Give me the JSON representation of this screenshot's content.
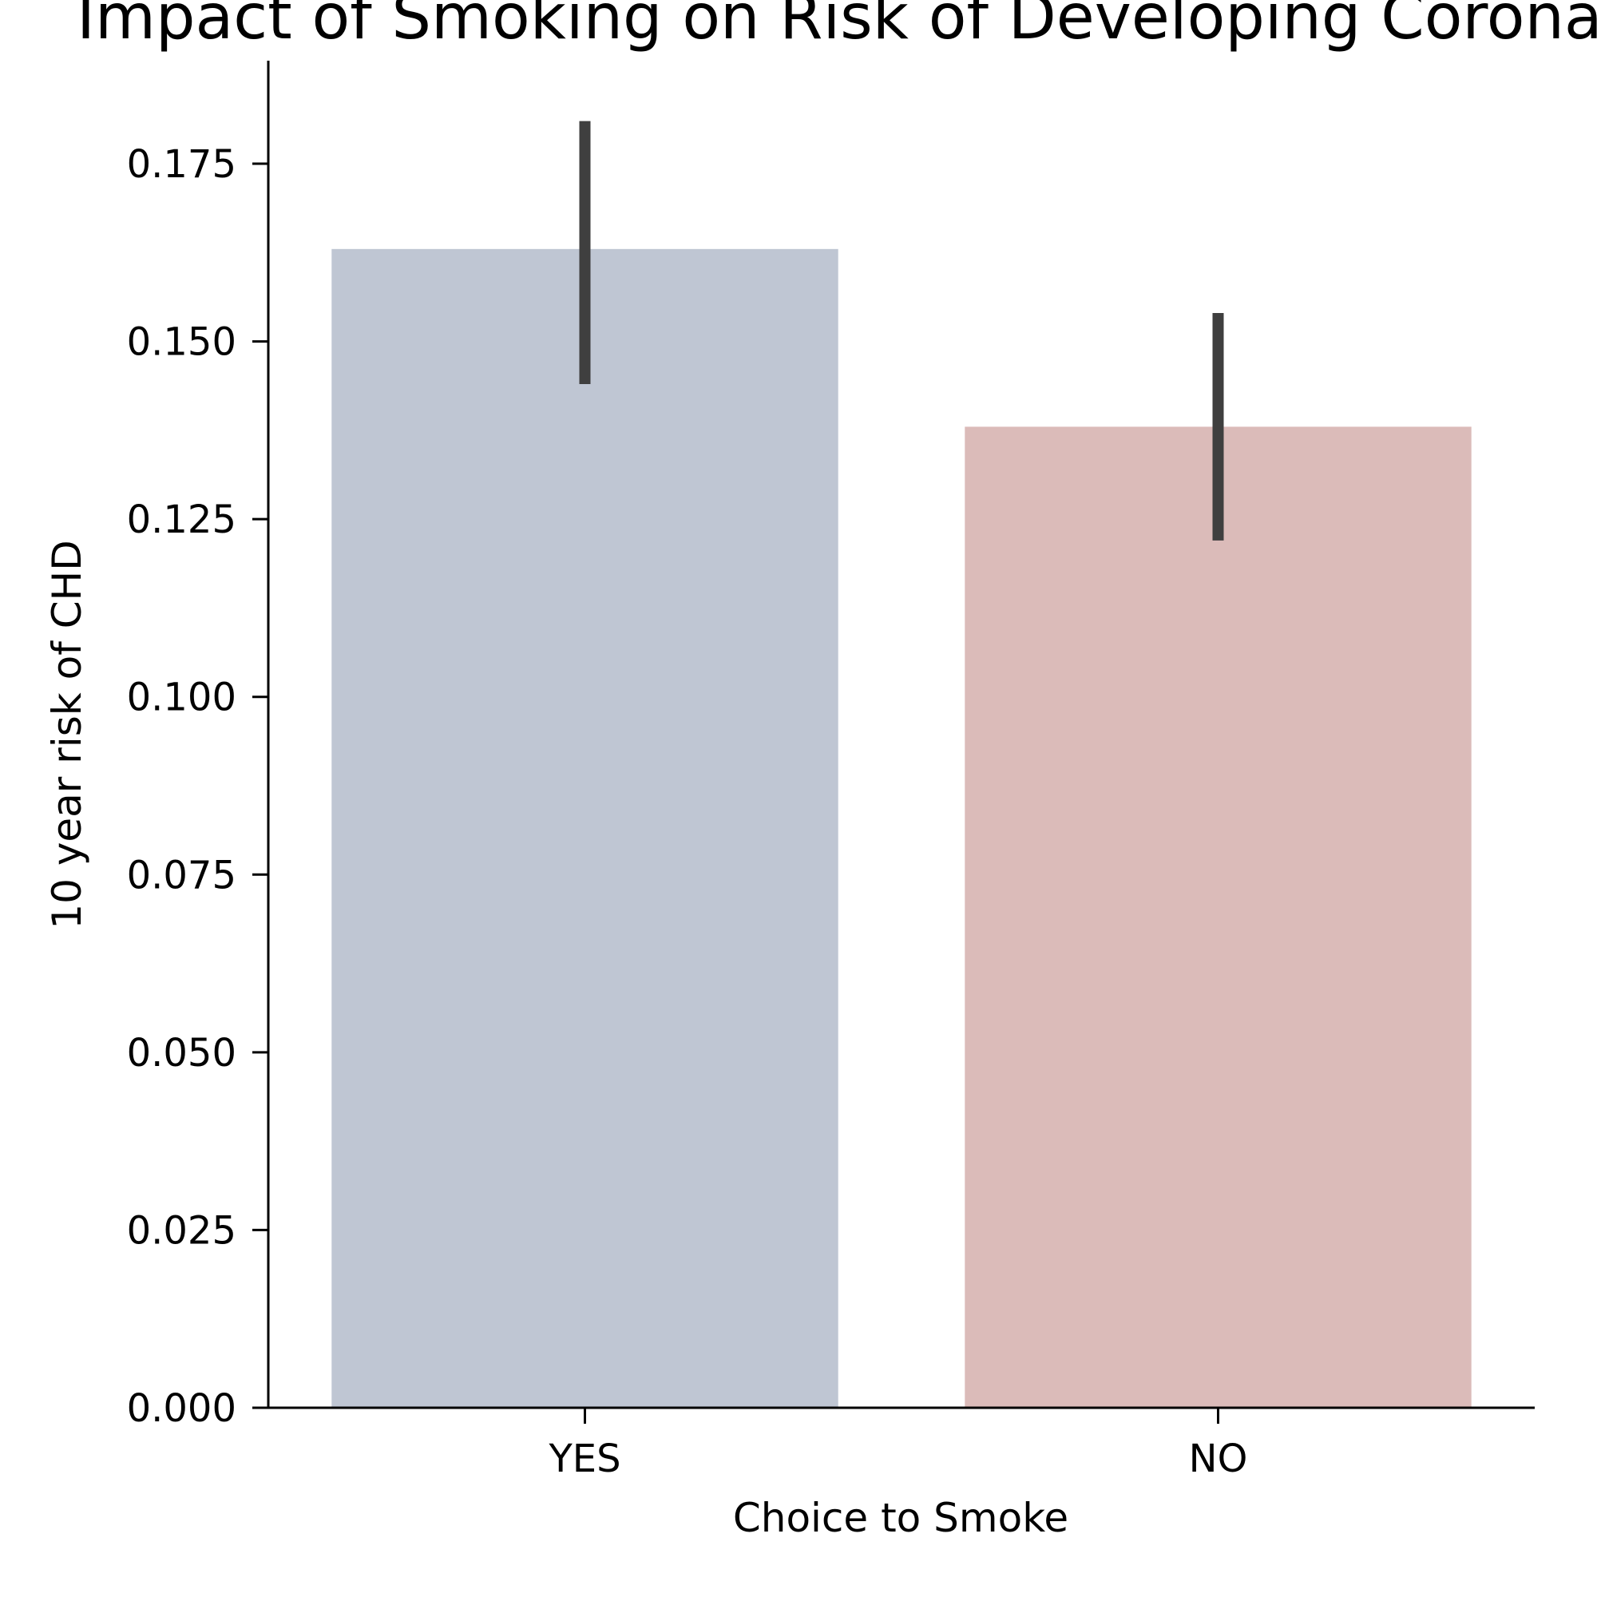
{
  "chart_data": {
    "type": "bar",
    "title": "Impact of Smoking on Risk of Developing Coronary Heart Disease",
    "xlabel": "Choice to Smoke",
    "ylabel": "10 year risk of CHD",
    "categories": [
      "YES",
      "NO"
    ],
    "values": [
      0.163,
      0.138
    ],
    "error_bars": [
      [
        0.144,
        0.181
      ],
      [
        0.122,
        0.154
      ]
    ],
    "bar_colors": [
      "#bfc6d3",
      "#dbbbb9"
    ],
    "error_bar_color": "#3f3f3f",
    "ylim": [
      0,
      0.189
    ],
    "yticks": [
      "0.000",
      "0.025",
      "0.050",
      "0.075",
      "0.100",
      "0.125",
      "0.150",
      "0.175"
    ],
    "grid": false
  }
}
